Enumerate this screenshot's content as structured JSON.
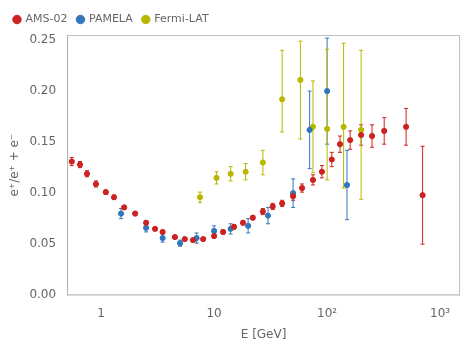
{
  "chart_data": {
    "type": "scatter",
    "xlabel": "E [GeV]",
    "ylabel": "e⁺/e⁺ + e⁻",
    "log": "x",
    "grid": false,
    "legend": "upper left",
    "xlim": [
      0.5,
      1500
    ],
    "xticks": [
      1,
      10,
      {
        "value": 100,
        "label": "10²"
      },
      {
        "value": 1000,
        "label": "10³"
      }
    ],
    "ylim": [
      0.0,
      0.255
    ],
    "yticks": [
      {
        "value": 0,
        "label": "0.00"
      },
      0.05,
      {
        "value": 0.1,
        "label": "0.10"
      },
      0.15,
      {
        "value": 0.2,
        "label": "0.20"
      },
      0.25
    ],
    "series": [
      {
        "name": "AMS-02",
        "color": "#cc2222",
        "marker": "circle",
        "x": [
          0.55,
          0.65,
          0.75,
          0.9,
          1.1,
          1.3,
          1.6,
          2.0,
          2.5,
          3.0,
          3.5,
          4.5,
          5.5,
          6.5,
          8.0,
          10.0,
          12.0,
          15.0,
          18.0,
          22.0,
          27.0,
          33.0,
          40.0,
          50.0,
          60.0,
          75.0,
          90.0,
          110.0,
          130.0,
          160.0,
          200.0,
          250.0,
          320.0,
          500.0,
          700.0
        ],
        "values": [
          0.131,
          0.128,
          0.119,
          0.109,
          0.101,
          0.096,
          0.086,
          0.08,
          0.071,
          0.065,
          0.062,
          0.057,
          0.055,
          0.054,
          0.055,
          0.058,
          0.062,
          0.067,
          0.071,
          0.076,
          0.082,
          0.087,
          0.09,
          0.097,
          0.105,
          0.113,
          0.121,
          0.133,
          0.148,
          0.152,
          0.157,
          0.156,
          0.161,
          0.165,
          0.098
        ],
        "yerr_lo": [
          0.004,
          0.003,
          0.003,
          0.003,
          0.002,
          0.002,
          0.002,
          0.002,
          0.002,
          0.001,
          0.001,
          0.001,
          0.001,
          0.001,
          0.001,
          0.002,
          0.002,
          0.002,
          0.002,
          0.002,
          0.003,
          0.003,
          0.003,
          0.004,
          0.004,
          0.005,
          0.006,
          0.007,
          0.008,
          0.009,
          0.01,
          0.011,
          0.013,
          0.018,
          0.048
        ],
        "yerr_hi": [
          0.004,
          0.003,
          0.003,
          0.003,
          0.002,
          0.002,
          0.002,
          0.002,
          0.002,
          0.001,
          0.001,
          0.001,
          0.001,
          0.001,
          0.001,
          0.002,
          0.002,
          0.002,
          0.002,
          0.002,
          0.003,
          0.003,
          0.003,
          0.004,
          0.004,
          0.005,
          0.006,
          0.007,
          0.008,
          0.009,
          0.01,
          0.011,
          0.013,
          0.018,
          0.048
        ]
      },
      {
        "name": "PAMELA",
        "color": "#3377bb",
        "marker": "circle",
        "x": [
          1.5,
          2.5,
          3.5,
          5.0,
          7.0,
          10.0,
          14.0,
          20.0,
          30.0,
          50.0,
          70.0,
          100.0,
          150.0
        ],
        "values": [
          0.08,
          0.066,
          0.056,
          0.051,
          0.056,
          0.063,
          0.065,
          0.068,
          0.078,
          0.1,
          0.162,
          0.2,
          0.108
        ],
        "yerr_lo": [
          0.005,
          0.004,
          0.004,
          0.003,
          0.005,
          0.005,
          0.005,
          0.007,
          0.008,
          0.014,
          0.038,
          0.052,
          0.034
        ],
        "yerr_hi": [
          0.005,
          0.004,
          0.004,
          0.003,
          0.005,
          0.005,
          0.005,
          0.007,
          0.008,
          0.014,
          0.038,
          0.052,
          0.034
        ]
      },
      {
        "name": "Fermi-LAT",
        "color": "#b8b800",
        "marker": "circle",
        "x": [
          7.5,
          10.5,
          14.0,
          19.0,
          27.0,
          40.0,
          58.0,
          75.0,
          100.0,
          140.0,
          200.0
        ],
        "values": [
          0.096,
          0.115,
          0.119,
          0.121,
          0.13,
          0.192,
          0.211,
          0.165,
          0.163,
          0.165,
          0.162
        ],
        "yerr_lo": [
          0.005,
          0.006,
          0.007,
          0.008,
          0.012,
          0.032,
          0.058,
          0.045,
          0.05,
          0.06,
          0.068
        ],
        "yerr_hi": [
          0.005,
          0.006,
          0.007,
          0.008,
          0.012,
          0.048,
          0.038,
          0.045,
          0.078,
          0.082,
          0.078
        ]
      }
    ]
  }
}
